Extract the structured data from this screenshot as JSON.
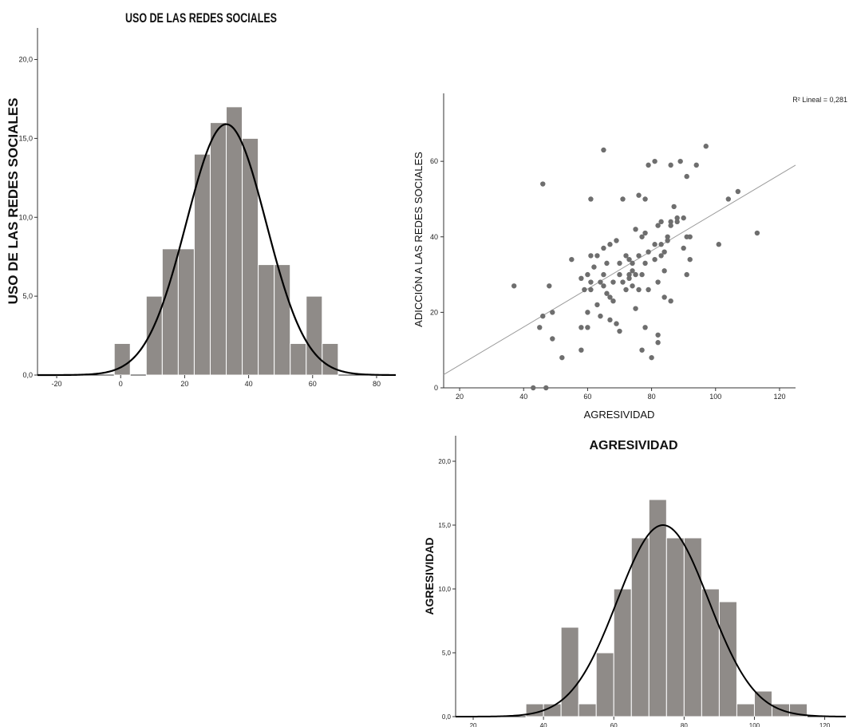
{
  "chart_data": [
    {
      "type": "bar",
      "title": "USO DE LAS REDES SOCIALES",
      "xlabel": "",
      "ylabel": "USO DE LAS REDES SOCIALES",
      "bin_width": 5,
      "bin_left_edges": [
        -2,
        3,
        8,
        13,
        18,
        23,
        28,
        33,
        38,
        43,
        48,
        53,
        58,
        63
      ],
      "values": [
        2,
        0,
        5,
        8,
        8,
        14,
        16,
        17,
        15,
        7,
        7,
        2,
        5,
        2
      ],
      "normal_curve": {
        "mean": 33,
        "sd": 12.5,
        "peak": 15.9
      },
      "xlim": [
        -26,
        86
      ],
      "ylim": [
        0,
        22
      ],
      "xticks": [
        "-20",
        "0",
        "20",
        "40",
        "60",
        "80"
      ],
      "xtick_values": [
        -20,
        0,
        20,
        40,
        60,
        80
      ],
      "yticks": [
        "0,0",
        "5,0",
        "10,0",
        "15,0",
        "20,0"
      ],
      "ytick_values": [
        0,
        5,
        10,
        15,
        20
      ],
      "colors": {
        "bar": "#8f8b88",
        "curve": "#000000"
      }
    },
    {
      "type": "scatter",
      "title": "",
      "xlabel": "AGRESIVIDAD",
      "ylabel": "ADICCIÓN A LAS REDES SOCIALES",
      "r2_label": "R² Lineal = 0,281",
      "xlim": [
        15,
        125
      ],
      "ylim": [
        0,
        78
      ],
      "xticks": [
        "20",
        "40",
        "60",
        "80",
        "100",
        "120"
      ],
      "xtick_values": [
        20,
        40,
        60,
        80,
        100,
        120
      ],
      "yticks": [
        "0",
        "20",
        "40",
        "60"
      ],
      "ytick_values": [
        0,
        20,
        40,
        60
      ],
      "fit_line": {
        "x": [
          15,
          125
        ],
        "y": [
          3.5,
          59
        ]
      },
      "points": [
        [
          37,
          27
        ],
        [
          43,
          0
        ],
        [
          46,
          54
        ],
        [
          46,
          19
        ],
        [
          47,
          0
        ],
        [
          48,
          27
        ],
        [
          49,
          20
        ],
        [
          49,
          13
        ],
        [
          45,
          16
        ],
        [
          52,
          8
        ],
        [
          55,
          34
        ],
        [
          58,
          29
        ],
        [
          58,
          16
        ],
        [
          58,
          10
        ],
        [
          59,
          26
        ],
        [
          60,
          30
        ],
        [
          60,
          20
        ],
        [
          60,
          16
        ],
        [
          61,
          50
        ],
        [
          61,
          35
        ],
        [
          61,
          28
        ],
        [
          61,
          26
        ],
        [
          62,
          32
        ],
        [
          63,
          35
        ],
        [
          63,
          22
        ],
        [
          64,
          28
        ],
        [
          64,
          19
        ],
        [
          65,
          63
        ],
        [
          65,
          37
        ],
        [
          65,
          30
        ],
        [
          65,
          27
        ],
        [
          66,
          33
        ],
        [
          66,
          25
        ],
        [
          67,
          38
        ],
        [
          67,
          24
        ],
        [
          67,
          18
        ],
        [
          68,
          28
        ],
        [
          68,
          23
        ],
        [
          69,
          39
        ],
        [
          69,
          17
        ],
        [
          70,
          33
        ],
        [
          70,
          30
        ],
        [
          70,
          15
        ],
        [
          71,
          50
        ],
        [
          71,
          28
        ],
        [
          72,
          35
        ],
        [
          72,
          26
        ],
        [
          73,
          34
        ],
        [
          73,
          30
        ],
        [
          73,
          29
        ],
        [
          74,
          33
        ],
        [
          74,
          31
        ],
        [
          74,
          27
        ],
        [
          75,
          42
        ],
        [
          75,
          30
        ],
        [
          75,
          21
        ],
        [
          76,
          51
        ],
        [
          76,
          35
        ],
        [
          76,
          26
        ],
        [
          77,
          40
        ],
        [
          77,
          30
        ],
        [
          77,
          10
        ],
        [
          78,
          50
        ],
        [
          78,
          41
        ],
        [
          78,
          33
        ],
        [
          78,
          16
        ],
        [
          79,
          59
        ],
        [
          79,
          36
        ],
        [
          79,
          26
        ],
        [
          80,
          8
        ],
        [
          81,
          60
        ],
        [
          81,
          38
        ],
        [
          81,
          34
        ],
        [
          82,
          43
        ],
        [
          82,
          28
        ],
        [
          82,
          14
        ],
        [
          82,
          12
        ],
        [
          83,
          44
        ],
        [
          83,
          38
        ],
        [
          83,
          35
        ],
        [
          84,
          36
        ],
        [
          84,
          31
        ],
        [
          84,
          24
        ],
        [
          85,
          40
        ],
        [
          85,
          39
        ],
        [
          86,
          59
        ],
        [
          86,
          44
        ],
        [
          86,
          43
        ],
        [
          86,
          23
        ],
        [
          87,
          48
        ],
        [
          88,
          45
        ],
        [
          88,
          44
        ],
        [
          89,
          60
        ],
        [
          90,
          45
        ],
        [
          90,
          37
        ],
        [
          91,
          56
        ],
        [
          91,
          40
        ],
        [
          91,
          30
        ],
        [
          92,
          40
        ],
        [
          92,
          34
        ],
        [
          94,
          59
        ],
        [
          97,
          64
        ],
        [
          101,
          38
        ],
        [
          104,
          50
        ],
        [
          107,
          52
        ],
        [
          113,
          41
        ]
      ],
      "colors": {
        "point": "#6e6e6e",
        "line": "#9a9a9a"
      }
    },
    {
      "type": "bar",
      "title": "AGRESIVIDAD",
      "xlabel": "",
      "ylabel": "AGRESIVIDAD",
      "bin_width": 5,
      "bin_left_edges": [
        35,
        40,
        45,
        50,
        55,
        60,
        65,
        70,
        75,
        80,
        85,
        90,
        95,
        100,
        105,
        110
      ],
      "values": [
        1,
        1,
        7,
        1,
        5,
        10,
        14,
        17,
        14,
        14,
        10,
        9,
        1,
        2,
        1,
        1
      ],
      "normal_curve": {
        "mean": 74,
        "sd": 13,
        "peak": 15.0
      },
      "xlim": [
        15,
        126
      ],
      "ylim": [
        0,
        22
      ],
      "xticks": [
        "20",
        "40",
        "60",
        "80",
        "100",
        "120"
      ],
      "xtick_values": [
        20,
        40,
        60,
        80,
        100,
        120
      ],
      "yticks": [
        "0,0",
        "5,0",
        "10,0",
        "15,0",
        "20,0"
      ],
      "ytick_values": [
        0,
        5,
        10,
        15,
        20
      ],
      "colors": {
        "bar": "#8f8b88",
        "curve": "#000000"
      }
    }
  ]
}
